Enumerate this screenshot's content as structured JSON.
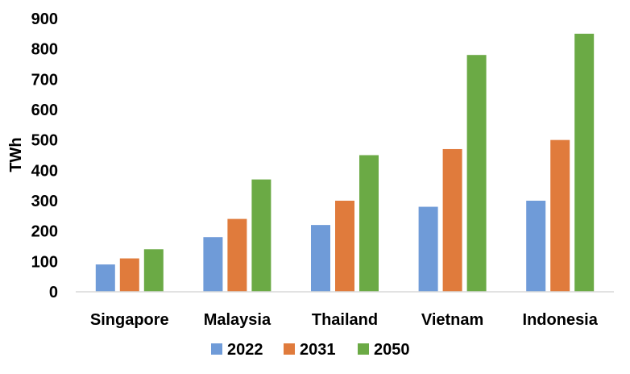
{
  "chart_data": {
    "type": "bar",
    "categories": [
      "Singapore",
      "Malaysia",
      "Thailand",
      "Vietnam",
      "Indonesia"
    ],
    "series": [
      {
        "name": "2022",
        "color": "#6F9BD8",
        "values": [
          90,
          180,
          220,
          280,
          300
        ]
      },
      {
        "name": "2031",
        "color": "#E07B3C",
        "values": [
          110,
          240,
          300,
          470,
          500
        ]
      },
      {
        "name": "2050",
        "color": "#6BAA45",
        "values": [
          140,
          370,
          450,
          780,
          850
        ]
      }
    ],
    "ylabel": "TWh",
    "xlabel": "",
    "ylim": [
      0,
      900
    ],
    "yticks": [
      0,
      100,
      200,
      300,
      400,
      500,
      600,
      700,
      800,
      900
    ],
    "grid": false,
    "legend_position": "bottom"
  }
}
